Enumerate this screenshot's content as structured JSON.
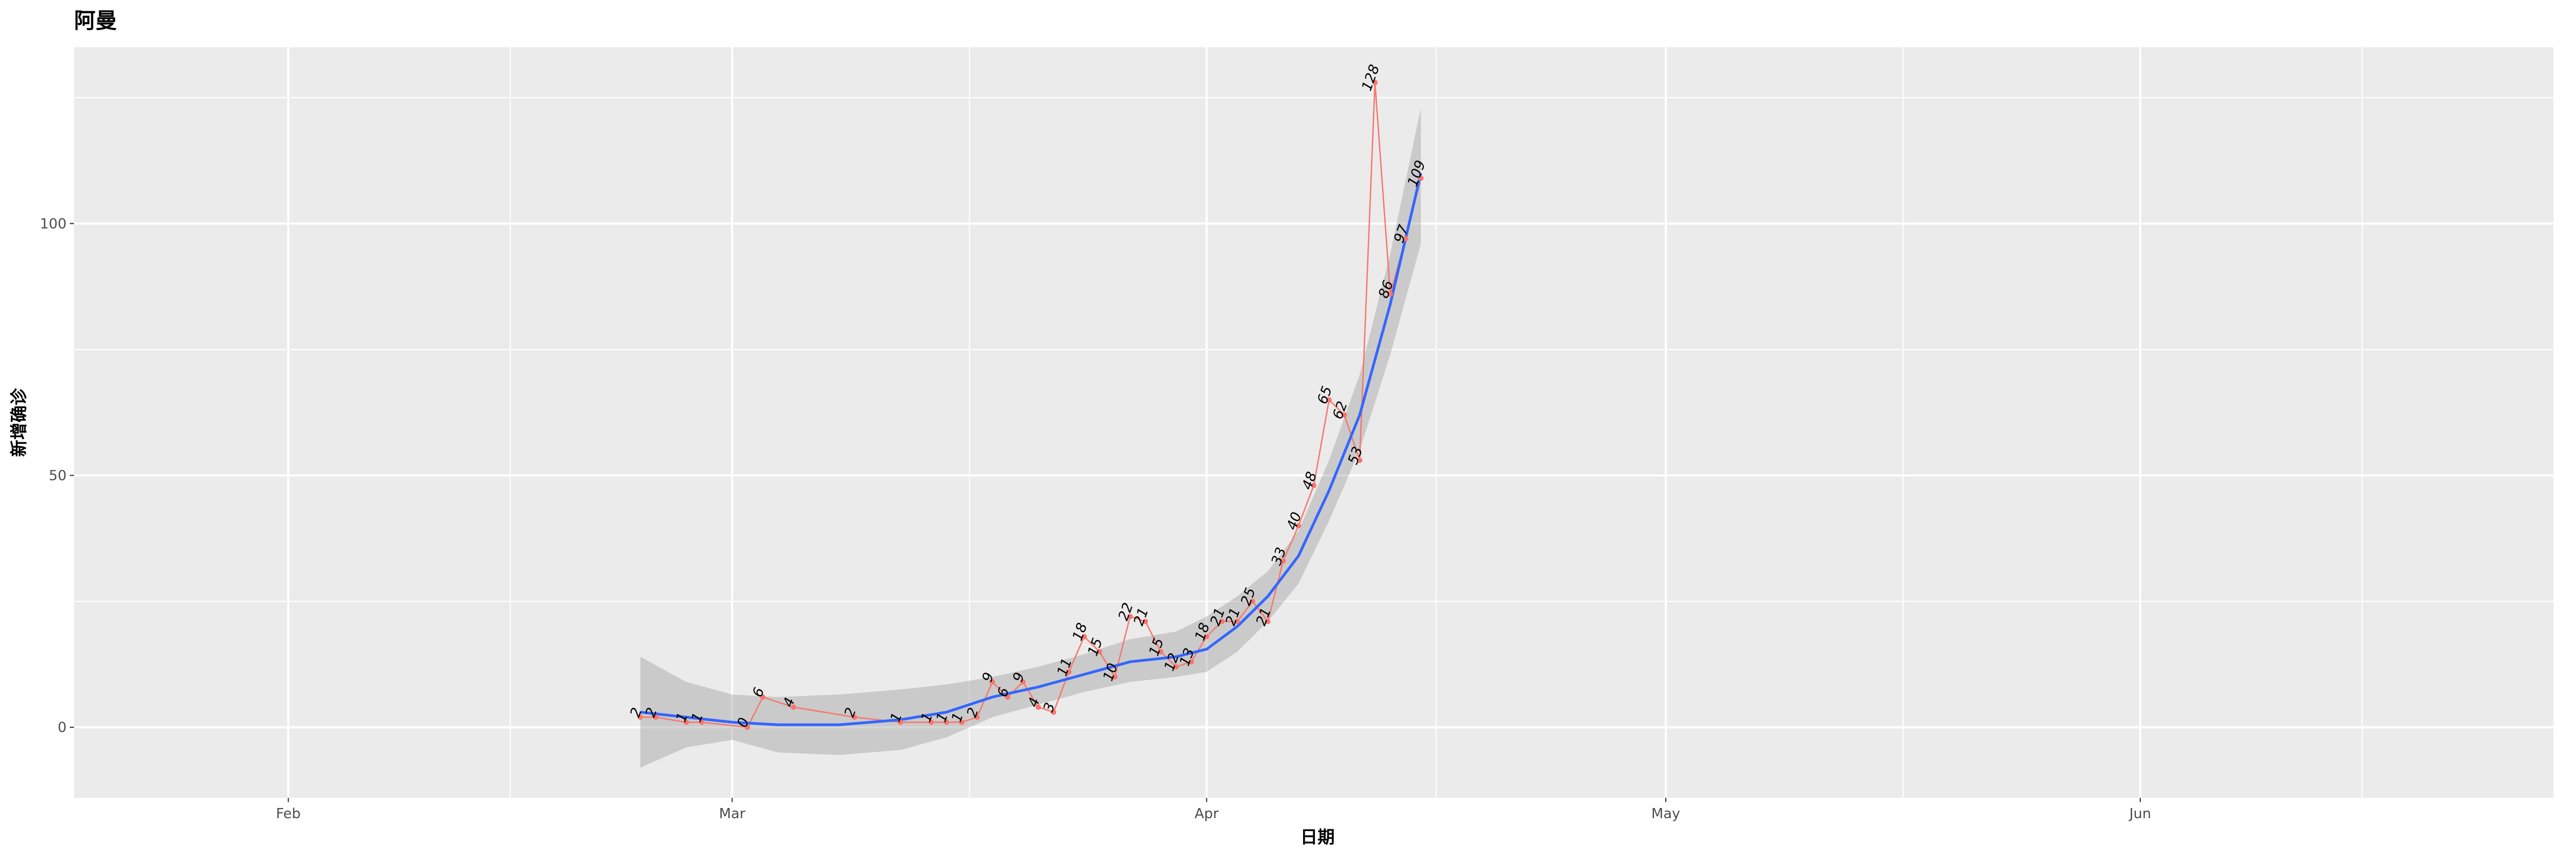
{
  "chart_data": {
    "type": "line",
    "title": "阿曼",
    "xlabel": "日期",
    "ylabel": "新增确诊",
    "x_ticks": [
      "Feb",
      "Mar",
      "Apr",
      "May",
      "Jun"
    ],
    "x_tick_dates": [
      "2020-02-01",
      "2020-03-01",
      "2020-04-01",
      "2020-05-01",
      "2020-06-01"
    ],
    "xlim": [
      "2020-01-18",
      "2020-06-28"
    ],
    "y_ticks": [
      0,
      50,
      100
    ],
    "ylim": [
      -14,
      135
    ],
    "grid": true,
    "colors": {
      "panel": "#ebebeb",
      "grid": "#ffffff",
      "line": "#f8766d",
      "smooth": "#3366ff",
      "ribbon": "#999999"
    },
    "series": [
      {
        "kind": "observed",
        "x": [
          "2020-02-24",
          "2020-02-25",
          "2020-02-27",
          "2020-02-28",
          "2020-03-02",
          "2020-03-03",
          "2020-03-05",
          "2020-03-09",
          "2020-03-12",
          "2020-03-14",
          "2020-03-15",
          "2020-03-16",
          "2020-03-17",
          "2020-03-18",
          "2020-03-19",
          "2020-03-20",
          "2020-03-21",
          "2020-03-22",
          "2020-03-23",
          "2020-03-24",
          "2020-03-25",
          "2020-03-26",
          "2020-03-27",
          "2020-03-28",
          "2020-03-29",
          "2020-03-30",
          "2020-03-31",
          "2020-04-01",
          "2020-04-02",
          "2020-04-03",
          "2020-04-04",
          "2020-04-05",
          "2020-04-06",
          "2020-04-07",
          "2020-04-08",
          "2020-04-09",
          "2020-04-10",
          "2020-04-11",
          "2020-04-12",
          "2020-04-13",
          "2020-04-14",
          "2020-04-15"
        ],
        "values": [
          2,
          2,
          1,
          1,
          0,
          6,
          4,
          2,
          1,
          1,
          1,
          1,
          2,
          9,
          6,
          9,
          4,
          3,
          11,
          18,
          15,
          10,
          22,
          21,
          15,
          12,
          13,
          18,
          21,
          21,
          25,
          21,
          33,
          40,
          48,
          65,
          62,
          53,
          128,
          86,
          97,
          109
        ],
        "labels": [
          "2",
          "2",
          "1",
          "1",
          "0",
          "6",
          "4",
          "2",
          "1",
          "1",
          "1",
          "1",
          "2",
          "9",
          "6",
          "9",
          "4",
          "3",
          "11",
          "18",
          "15",
          "10",
          "22",
          "21",
          "15",
          "12",
          "13",
          "18",
          "21",
          "21",
          "25",
          "21",
          "33",
          "40",
          "48",
          "65",
          "62",
          "53",
          "128",
          "86",
          "97",
          "109"
        ]
      },
      {
        "kind": "smooth",
        "x": [
          "2020-02-24",
          "2020-02-27",
          "2020-03-01",
          "2020-03-04",
          "2020-03-08",
          "2020-03-12",
          "2020-03-15",
          "2020-03-18",
          "2020-03-21",
          "2020-03-24",
          "2020-03-27",
          "2020-03-30",
          "2020-04-01",
          "2020-04-03",
          "2020-04-05",
          "2020-04-07",
          "2020-04-09",
          "2020-04-11",
          "2020-04-13",
          "2020-04-15"
        ],
        "values": [
          3,
          2,
          1,
          0.5,
          0.5,
          1.5,
          3,
          6,
          8,
          10.5,
          13,
          14,
          15.5,
          20,
          26,
          34,
          47,
          62,
          84,
          110
        ],
        "upper": [
          14,
          9,
          6.5,
          6,
          6.5,
          7.5,
          8.5,
          10,
          12,
          14.5,
          17.5,
          19,
          22,
          26,
          31,
          39,
          53,
          70,
          94,
          123
        ],
        "lower": [
          -8,
          -4,
          -2.5,
          -5,
          -5.5,
          -4.5,
          -2,
          2,
          4.5,
          7,
          9,
          10,
          11,
          15,
          21,
          28.5,
          41,
          55,
          74,
          96
        ]
      }
    ]
  }
}
